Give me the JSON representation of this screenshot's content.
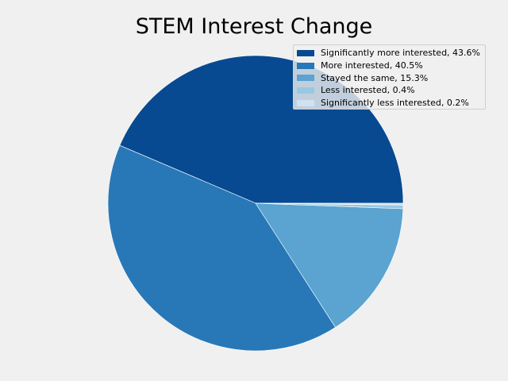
{
  "chart_data": {
    "type": "pie",
    "title": "STEM Interest Change",
    "start_angle_deg": 0,
    "direction": "counterclockwise",
    "legend_position": "upper-right",
    "slices": [
      {
        "label": "Significantly more interested",
        "value": 43.6,
        "legend_text": "Significantly more interested, 43.6%",
        "color": "#084a91"
      },
      {
        "label": "More interested",
        "value": 40.5,
        "legend_text": "More interested, 40.5%",
        "color": "#2878b8"
      },
      {
        "label": "Stayed the same",
        "value": 15.3,
        "legend_text": "Stayed the same, 15.3%",
        "color": "#5ba3d0"
      },
      {
        "label": "Less interested",
        "value": 0.4,
        "legend_text": "Less interested, 0.4%",
        "color": "#9ac8e0"
      },
      {
        "label": "Significantly less interested",
        "value": 0.2,
        "legend_text": "Significantly less interested, 0.2%",
        "color": "#d0e1f2"
      }
    ]
  }
}
